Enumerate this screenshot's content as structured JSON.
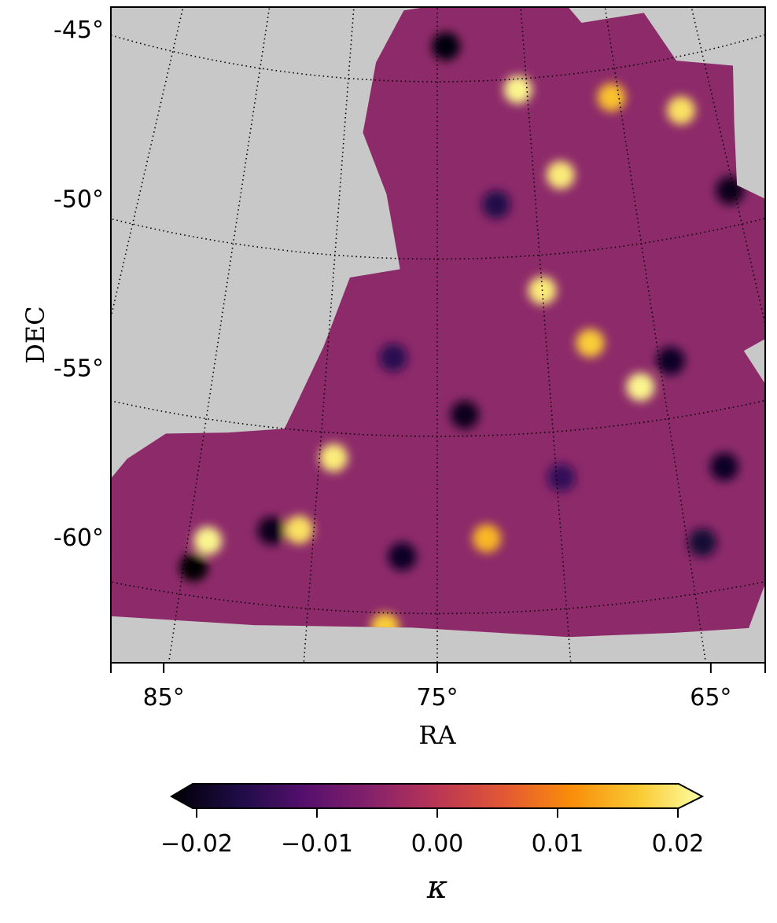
{
  "chart_data": {
    "type": "heatmap",
    "projection": "conic sky map with curved graticule",
    "xlabel": "RA",
    "ylabel": "DEC",
    "xticks": [
      {
        "value": 65,
        "label": "65°"
      },
      {
        "value": 75,
        "label": "75°"
      },
      {
        "value": 85,
        "label": "85°"
      }
    ],
    "yticks": [
      {
        "value": -45,
        "label": "-45°"
      },
      {
        "value": -50,
        "label": "-50°"
      },
      {
        "value": -55,
        "label": "-55°"
      },
      {
        "value": -60,
        "label": "-60°"
      }
    ],
    "graticule": {
      "visible": true,
      "style": "dotted"
    },
    "background_color": "#c8c8c8",
    "colormap": "inferno",
    "colorbar": {
      "label": "κ",
      "vmin": -0.022,
      "vmax": 0.022,
      "extend": "both",
      "ticks": [
        {
          "value": -0.02,
          "label": "−0.02"
        },
        {
          "value": -0.01,
          "label": "−0.01"
        },
        {
          "value": 0.0,
          "label": "0.00"
        },
        {
          "value": 0.01,
          "label": "0.01"
        },
        {
          "value": 0.02,
          "label": "0.02"
        }
      ]
    },
    "footprint_ra_dec": [
      [
        62.8,
        -43.6
      ],
      [
        66.5,
        -43.6
      ],
      [
        68.5,
        -42.2
      ],
      [
        72.0,
        -42.0
      ],
      [
        74.4,
        -42.8
      ],
      [
        77.0,
        -43.0
      ],
      [
        78.5,
        -44.5
      ],
      [
        79.0,
        -46.5
      ],
      [
        77.6,
        -48.2
      ],
      [
        76.8,
        -50.3
      ],
      [
        79.2,
        -50.6
      ],
      [
        80.2,
        -52.6
      ],
      [
        81.2,
        -54.3
      ],
      [
        81.6,
        -55.0
      ],
      [
        84.0,
        -55.3
      ],
      [
        86.6,
        -55.6
      ],
      [
        88.0,
        -56.5
      ],
      [
        89.0,
        -57.8
      ],
      [
        90.4,
        -59.2
      ],
      [
        92.0,
        -60.5
      ],
      [
        93.0,
        -61.4
      ],
      [
        88.0,
        -61.0
      ],
      [
        82.0,
        -60.6
      ],
      [
        76.0,
        -60.4
      ],
      [
        70.0,
        -60.8
      ],
      [
        66.0,
        -61.0
      ],
      [
        63.2,
        -61.2
      ],
      [
        61.8,
        -59.5
      ],
      [
        60.8,
        -57.0
      ],
      [
        58.9,
        -55.9
      ],
      [
        58.4,
        -55.2
      ],
      [
        60.5,
        -54.7
      ],
      [
        61.2,
        -53.5
      ],
      [
        58.4,
        -53.0
      ],
      [
        57.2,
        -51.5
      ],
      [
        55.5,
        -51.0
      ],
      [
        57.5,
        -50.0
      ],
      [
        59.8,
        -48.9
      ],
      [
        59.2,
        -47.2
      ],
      [
        58.5,
        -45.6
      ],
      [
        61.5,
        -45.1
      ],
      [
        62.8,
        -43.6
      ]
    ],
    "visible_structures": [
      {
        "ra": 70.5,
        "dec": -45.3,
        "kappa": 0.021
      },
      {
        "ra": 68.6,
        "dec": -47.8,
        "kappa": 0.02
      },
      {
        "ra": 61.8,
        "dec": -46.5,
        "kappa": 0.019
      },
      {
        "ra": 65.4,
        "dec": -45.8,
        "kappa": 0.016
      },
      {
        "ra": 70.0,
        "dec": -51.0,
        "kappa": 0.02
      },
      {
        "ra": 66.0,
        "dec": -54.0,
        "kappa": 0.021
      },
      {
        "ra": 68.0,
        "dec": -52.6,
        "kappa": 0.017
      },
      {
        "ra": 79.4,
        "dec": -55.7,
        "kappa": 0.02
      },
      {
        "ra": 84.2,
        "dec": -58.4,
        "kappa": 0.021
      },
      {
        "ra": 80.6,
        "dec": -57.8,
        "kappa": 0.019
      },
      {
        "ra": 73.0,
        "dec": -57.9,
        "kappa": 0.015
      },
      {
        "ra": 77.0,
        "dec": -60.4,
        "kappa": 0.017
      },
      {
        "ra": 74.5,
        "dec": -44.0,
        "kappa": -0.021
      },
      {
        "ra": 60.2,
        "dec": -49.0,
        "kappa": -0.02
      },
      {
        "ra": 64.5,
        "dec": -53.4,
        "kappa": -0.019
      },
      {
        "ra": 73.8,
        "dec": -54.4,
        "kappa": -0.02
      },
      {
        "ra": 84.6,
        "dec": -59.2,
        "kappa": -0.022
      },
      {
        "ra": 81.7,
        "dec": -57.9,
        "kappa": -0.02
      },
      {
        "ra": 63.0,
        "dec": -56.6,
        "kappa": -0.019
      },
      {
        "ra": 64.4,
        "dec": -58.6,
        "kappa": -0.018
      },
      {
        "ra": 76.4,
        "dec": -58.4,
        "kappa": -0.019
      },
      {
        "ra": 72.0,
        "dec": -48.5,
        "kappa": -0.016
      },
      {
        "ra": 77.0,
        "dec": -52.8,
        "kappa": -0.015
      },
      {
        "ra": 88.8,
        "dec": -59.0,
        "kappa": -0.018
      },
      {
        "ra": 69.8,
        "dec": -56.3,
        "kappa": -0.014
      }
    ]
  }
}
